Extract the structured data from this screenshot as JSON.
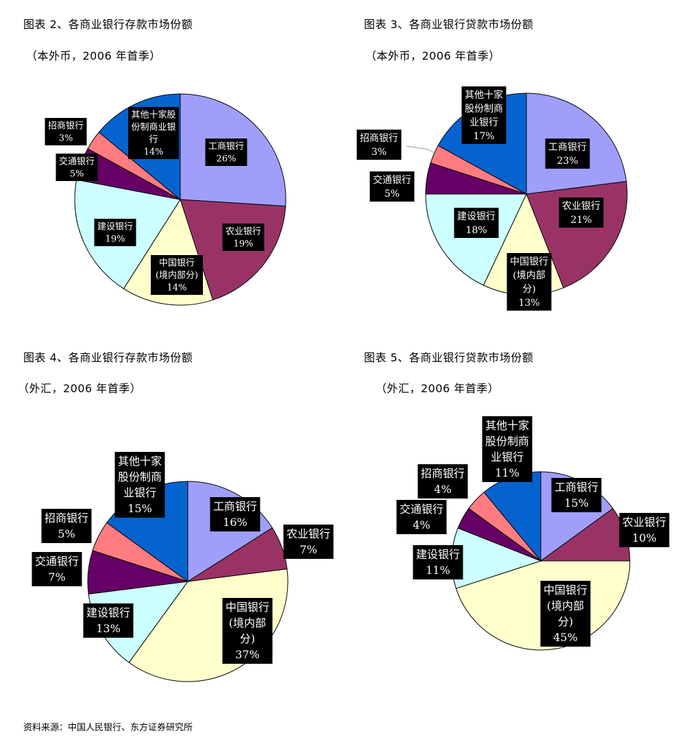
{
  "headings": [
    {
      "title": "图表 2、各商业银行存款市场份额",
      "subtitle": "（本外币，2006 年首季）"
    },
    {
      "title": "图表 3、各商业银行贷款市场份额",
      "subtitle": "（本外币，2006 年首季）"
    },
    {
      "title": "图表 4、各商业银行存款市场份额",
      "subtitle": "（外汇，2006 年首季）"
    },
    {
      "title": "图表 5、各商业银行贷款市场份额",
      "subtitle": "（外汇，2006 年首季）"
    }
  ],
  "source": "资料来源：中国人民银行、东方证券研究所",
  "colors": {
    "工商银行": "#9f9ffb",
    "农业银行": "#993366",
    "中国银行": "#ffffcc",
    "建设银行": "#ccffff",
    "交通银行": "#660066",
    "招商银行": "#ff7c80",
    "其他十家股份制商业银行": "#0563d0"
  },
  "chart_data": [
    {
      "type": "pie",
      "title": "图表 2、各商业银行存款市场份额",
      "subtitle": "（本外币，2006 年首季）",
      "slices": [
        {
          "name": "工商银行",
          "value": 26,
          "label_lines": [
            "工商银行",
            "26%"
          ]
        },
        {
          "name": "农业银行",
          "value": 19,
          "label_lines": [
            "农业银行",
            "19%"
          ]
        },
        {
          "name": "中国银行",
          "value": 14,
          "label_lines": [
            "中国银行",
            "(境内部分)",
            "14%"
          ]
        },
        {
          "name": "建设银行",
          "value": 19,
          "label_lines": [
            "建设银行",
            "19%"
          ]
        },
        {
          "name": "交通银行",
          "value": 5,
          "label_lines": [
            "交通银行",
            "5%"
          ]
        },
        {
          "name": "招商银行",
          "value": 3,
          "label_lines": [
            "招商银行",
            "3%"
          ]
        },
        {
          "name": "其他十家股份制商业银行",
          "value": 14,
          "label_lines": [
            "其他十家股",
            "份制商业银",
            "行",
            "14%"
          ]
        }
      ]
    },
    {
      "type": "pie",
      "title": "图表 3、各商业银行贷款市场份额",
      "subtitle": "（本外币，2006 年首季）",
      "slices": [
        {
          "name": "工商银行",
          "value": 23,
          "label_lines": [
            "工商银行",
            "23%"
          ]
        },
        {
          "name": "农业银行",
          "value": 21,
          "label_lines": [
            "农业银行",
            "21%"
          ]
        },
        {
          "name": "中国银行",
          "value": 13,
          "label_lines": [
            "中国银行",
            "(境内部",
            "分)",
            "13%"
          ]
        },
        {
          "name": "建设银行",
          "value": 18,
          "label_lines": [
            "建设银行",
            "18%"
          ]
        },
        {
          "name": "交通银行",
          "value": 5,
          "label_lines": [
            "交通银行",
            "5%"
          ]
        },
        {
          "name": "招商银行",
          "value": 3,
          "label_lines": [
            "招商银行",
            "3%"
          ]
        },
        {
          "name": "其他十家股份制商业银行",
          "value": 17,
          "label_lines": [
            "其他十家",
            "股份制商",
            "业银行",
            "17%"
          ]
        }
      ]
    },
    {
      "type": "pie",
      "title": "图表 4、各商业银行存款市场份额",
      "subtitle": "（外汇，2006 年首季）",
      "slices": [
        {
          "name": "工商银行",
          "value": 16,
          "label_lines": [
            "工商银行",
            "16%"
          ]
        },
        {
          "name": "农业银行",
          "value": 7,
          "label_lines": [
            "农业银行",
            "7%"
          ]
        },
        {
          "name": "中国银行",
          "value": 37,
          "label_lines": [
            "中国银行",
            "(境内部",
            "分)",
            "37%"
          ]
        },
        {
          "name": "建设银行",
          "value": 13,
          "label_lines": [
            "建设银行",
            "13%"
          ]
        },
        {
          "name": "交通银行",
          "value": 7,
          "label_lines": [
            "交通银行",
            "7%"
          ]
        },
        {
          "name": "招商银行",
          "value": 5,
          "label_lines": [
            "招商银行",
            "5%"
          ]
        },
        {
          "name": "其他十家股份制商业银行",
          "value": 15,
          "label_lines": [
            "其他十家",
            "股份制商",
            "业银行",
            "15%"
          ]
        }
      ]
    },
    {
      "type": "pie",
      "title": "图表 5、各商业银行贷款市场份额",
      "subtitle": "（外汇，2006 年首季）",
      "slices": [
        {
          "name": "工商银行",
          "value": 15,
          "label_lines": [
            "工商银行",
            "15%"
          ]
        },
        {
          "name": "农业银行",
          "value": 10,
          "label_lines": [
            "农业银行",
            "10%"
          ]
        },
        {
          "name": "中国银行",
          "value": 45,
          "label_lines": [
            "中国银行",
            "(境内部",
            "分)",
            "45%"
          ]
        },
        {
          "name": "建设银行",
          "value": 11,
          "label_lines": [
            "建设银行",
            "11%"
          ]
        },
        {
          "name": "交通银行",
          "value": 4,
          "label_lines": [
            "交通银行",
            "4%"
          ]
        },
        {
          "name": "招商银行",
          "value": 4,
          "label_lines": [
            "招商银行",
            "4%"
          ]
        },
        {
          "name": "其他十家股份制商业银行",
          "value": 11,
          "label_lines": [
            "其他十家",
            "股份制商",
            "业银行",
            "11%"
          ]
        }
      ]
    }
  ]
}
